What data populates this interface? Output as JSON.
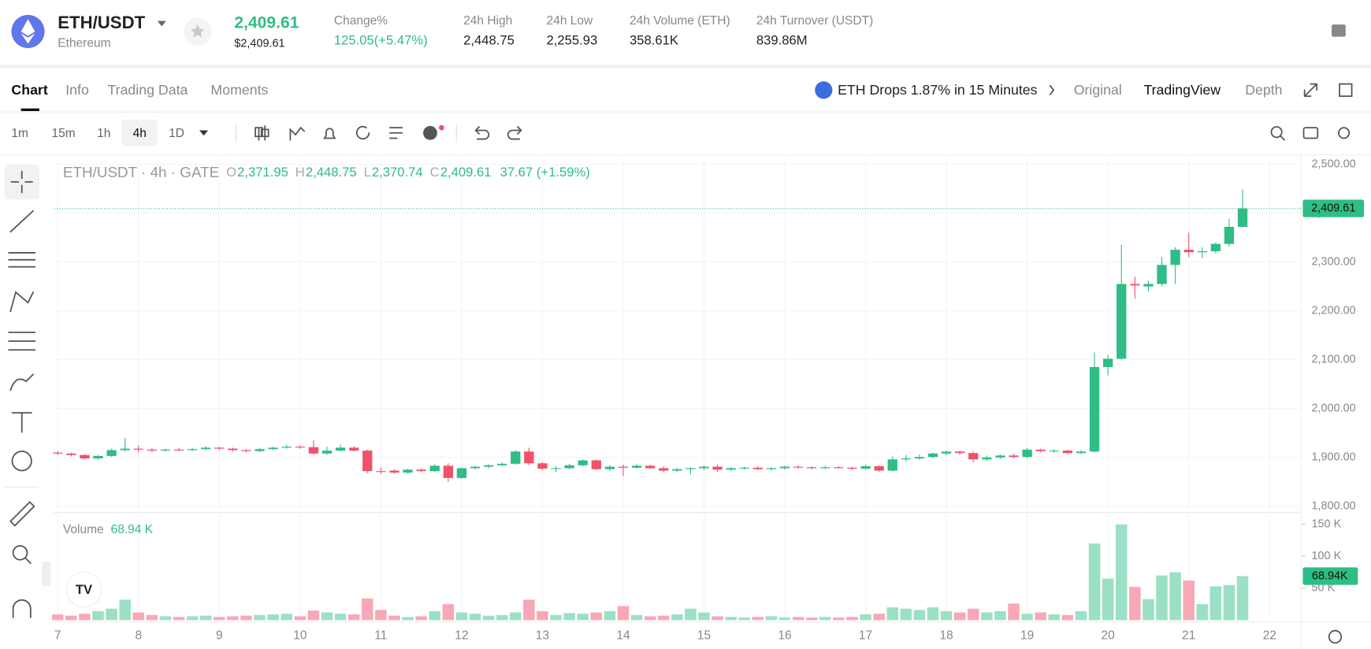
{
  "header": {
    "pair": "ETH/USDT",
    "name": "Ethereum",
    "price": "2,409.61",
    "price_usd": "$2,409.61",
    "stats": [
      {
        "label": "Change%",
        "value": "125.05(+5.47%)"
      },
      {
        "label": "24h High",
        "value": "2,448.75"
      },
      {
        "label": "24h Low",
        "value": "2,255.93"
      },
      {
        "label": "24h Volume (ETH)",
        "value": "358.61K"
      },
      {
        "label": "24h Turnover (USDT)",
        "value": "839.86M"
      }
    ]
  },
  "tabs": [
    {
      "label": "Chart",
      "active": true
    },
    {
      "label": "Info"
    },
    {
      "label": "Trading Data"
    },
    {
      "label": "Moments"
    }
  ],
  "news": "ETH Drops 1.87% in 15 Minutes",
  "views": [
    {
      "label": "Original"
    },
    {
      "label": "TradingView",
      "active": true
    },
    {
      "label": "Depth"
    }
  ],
  "intervals": [
    {
      "label": "1m"
    },
    {
      "label": "15m"
    },
    {
      "label": "1h"
    },
    {
      "label": "4h",
      "active": true
    },
    {
      "label": "1D"
    }
  ],
  "chart_data": {
    "type": "candlestick",
    "legend": {
      "title": "ETH/USDT · 4h · GATE",
      "fields": [
        {
          "label": "O",
          "value": "2,371.95"
        },
        {
          "label": "H",
          "value": "2,448.75"
        },
        {
          "label": "L",
          "value": "2,370.74"
        },
        {
          "label": "C",
          "value": "2,409.61"
        }
      ],
      "change": "37.67 (+1.59%)"
    },
    "up_color": "#2ebd85",
    "down_color": "#f0516b",
    "vol_up_color": "#9be0c4",
    "vol_down_color": "#f7a8b6",
    "grid": true,
    "candles": [
      [
        1910,
        1913,
        1905,
        1908
      ],
      [
        1908,
        1910,
        1902,
        1905
      ],
      [
        1905,
        1907,
        1896,
        1898
      ],
      [
        1898,
        1905,
        1895,
        1903
      ],
      [
        1903,
        1918,
        1901,
        1915
      ],
      [
        1915,
        1940,
        1912,
        1918
      ],
      [
        1918,
        1925,
        1910,
        1916
      ],
      [
        1916,
        1919,
        1911,
        1914
      ],
      [
        1914,
        1918,
        1912,
        1916
      ],
      [
        1916,
        1919,
        1913,
        1915
      ],
      [
        1915,
        1920,
        1913,
        1917
      ],
      [
        1917,
        1923,
        1915,
        1920
      ],
      [
        1920,
        1922,
        1915,
        1918
      ],
      [
        1918,
        1920,
        1912,
        1915
      ],
      [
        1915,
        1917,
        1910,
        1913
      ],
      [
        1913,
        1919,
        1911,
        1917
      ],
      [
        1917,
        1922,
        1915,
        1920
      ],
      [
        1920,
        1926,
        1918,
        1922
      ],
      [
        1922,
        1925,
        1918,
        1921
      ],
      [
        1921,
        1935,
        1906,
        1908
      ],
      [
        1908,
        1922,
        1905,
        1914
      ],
      [
        1914,
        1926,
        1912,
        1920
      ],
      [
        1920,
        1923,
        1912,
        1914
      ],
      [
        1914,
        1916,
        1868,
        1872
      ],
      [
        1872,
        1880,
        1866,
        1871
      ],
      [
        1873,
        1876,
        1867,
        1869
      ],
      [
        1869,
        1877,
        1867,
        1875
      ],
      [
        1875,
        1878,
        1870,
        1872
      ],
      [
        1872,
        1886,
        1870,
        1883
      ],
      [
        1883,
        1888,
        1850,
        1858
      ],
      [
        1858,
        1880,
        1856,
        1878
      ],
      [
        1878,
        1882,
        1875,
        1881
      ],
      [
        1881,
        1886,
        1878,
        1884
      ],
      [
        1884,
        1890,
        1882,
        1887
      ],
      [
        1887,
        1915,
        1885,
        1912
      ],
      [
        1912,
        1920,
        1884,
        1888
      ],
      [
        1888,
        1890,
        1874,
        1877
      ],
      [
        1877,
        1882,
        1870,
        1878
      ],
      [
        1878,
        1887,
        1876,
        1884
      ],
      [
        1884,
        1896,
        1882,
        1894
      ],
      [
        1894,
        1896,
        1874,
        1876
      ],
      [
        1876,
        1884,
        1872,
        1881
      ],
      [
        1881,
        1885,
        1862,
        1879
      ],
      [
        1879,
        1886,
        1877,
        1883
      ],
      [
        1883,
        1885,
        1876,
        1878
      ],
      [
        1878,
        1882,
        1870,
        1873
      ],
      [
        1873,
        1878,
        1870,
        1876
      ],
      [
        1876,
        1880,
        1865,
        1878
      ],
      [
        1878,
        1884,
        1874,
        1881
      ],
      [
        1881,
        1885,
        1870,
        1875
      ],
      [
        1875,
        1880,
        1872,
        1878
      ],
      [
        1878,
        1881,
        1875,
        1879
      ],
      [
        1879,
        1882,
        1874,
        1876
      ],
      [
        1876,
        1880,
        1873,
        1878
      ],
      [
        1878,
        1883,
        1875,
        1881
      ],
      [
        1881,
        1884,
        1877,
        1880
      ],
      [
        1880,
        1882,
        1876,
        1878
      ],
      [
        1878,
        1883,
        1876,
        1880
      ],
      [
        1880,
        1882,
        1877,
        1879
      ],
      [
        1879,
        1881,
        1874,
        1877
      ],
      [
        1877,
        1885,
        1875,
        1882
      ],
      [
        1882,
        1884,
        1870,
        1873
      ],
      [
        1873,
        1902,
        1871,
        1896
      ],
      [
        1896,
        1905,
        1892,
        1898
      ],
      [
        1898,
        1906,
        1895,
        1901
      ],
      [
        1901,
        1910,
        1898,
        1908
      ],
      [
        1908,
        1914,
        1904,
        1912
      ],
      [
        1912,
        1914,
        1905,
        1909
      ],
      [
        1909,
        1912,
        1890,
        1896
      ],
      [
        1896,
        1904,
        1893,
        1900
      ],
      [
        1900,
        1906,
        1897,
        1904
      ],
      [
        1904,
        1908,
        1898,
        1901
      ],
      [
        1901,
        1920,
        1898,
        1916
      ],
      [
        1916,
        1918,
        1910,
        1913
      ],
      [
        1913,
        1917,
        1910,
        1914
      ],
      [
        1914,
        1916,
        1906,
        1909
      ],
      [
        1909,
        1915,
        1907,
        1912
      ],
      [
        1912,
        2115,
        1910,
        2085
      ],
      [
        2085,
        2110,
        2068,
        2102
      ],
      [
        2102,
        2335,
        2100,
        2255
      ],
      [
        2255,
        2270,
        2225,
        2252
      ],
      [
        2250,
        2262,
        2240,
        2255
      ],
      [
        2255,
        2310,
        2250,
        2294
      ],
      [
        2294,
        2330,
        2255,
        2325
      ],
      [
        2325,
        2360,
        2310,
        2320
      ],
      [
        2320,
        2330,
        2308,
        2322
      ],
      [
        2322,
        2340,
        2318,
        2337
      ],
      [
        2337,
        2388,
        2332,
        2371.95
      ],
      [
        2371.95,
        2448.75,
        2370.74,
        2409.61
      ]
    ],
    "volumes": [
      9000,
      7000,
      10000,
      14000,
      18000,
      32000,
      12000,
      8000,
      6000,
      5000,
      6000,
      7000,
      5000,
      6000,
      7000,
      8000,
      9000,
      10000,
      6000,
      15000,
      12000,
      10000,
      9000,
      34000,
      16000,
      7000,
      5000,
      6000,
      14000,
      25000,
      12000,
      10000,
      7000,
      8000,
      12000,
      32000,
      14000,
      8000,
      11000,
      10000,
      12000,
      14000,
      22000,
      8000,
      6000,
      7000,
      9000,
      18000,
      12000,
      6000,
      5000,
      4000,
      5000,
      6000,
      4000,
      5000,
      4000,
      5000,
      4000,
      5000,
      9000,
      10000,
      20000,
      18000,
      16000,
      20000,
      14000,
      12000,
      18000,
      12000,
      14000,
      26000,
      10000,
      12000,
      9000,
      8000,
      14000,
      120000,
      65000,
      150000,
      52000,
      33000,
      70000,
      75000,
      62000,
      25000,
      53000,
      55000,
      68940
    ],
    "xlim": [
      -0.26,
      92.34
    ],
    "xticks": [
      {
        "value": 0,
        "label": "7"
      },
      {
        "value": 6,
        "label": "8"
      },
      {
        "value": 12,
        "label": "9"
      },
      {
        "value": 18,
        "label": "10"
      },
      {
        "value": 24,
        "label": "11"
      },
      {
        "value": 30,
        "label": "12"
      },
      {
        "value": 36,
        "label": "13"
      },
      {
        "value": 42,
        "label": "14"
      },
      {
        "value": 48,
        "label": "15"
      },
      {
        "value": 54,
        "label": "16"
      },
      {
        "value": 60,
        "label": "17"
      },
      {
        "value": 66,
        "label": "18"
      },
      {
        "value": 72,
        "label": "19"
      },
      {
        "value": 78,
        "label": "20"
      },
      {
        "value": 84,
        "label": "21"
      },
      {
        "value": 90,
        "label": "22"
      }
    ],
    "ylim": [
      1789,
      2514
    ],
    "yticks": [
      {
        "value": 1800,
        "label": "1,800.00"
      },
      {
        "value": 1900,
        "label": "1,900.00"
      },
      {
        "value": 2000,
        "label": "2,000.00"
      },
      {
        "value": 2100,
        "label": "2,100.00"
      },
      {
        "value": 2200,
        "label": "2,200.00"
      },
      {
        "value": 2300,
        "label": "2,300.00"
      },
      {
        "value": 2400,
        "label": "2,400.00"
      },
      {
        "value": 2500,
        "label": "2,500.00"
      }
    ],
    "price_label": "2,409.61",
    "volume_legend": {
      "label": "Volume",
      "value": "68.94 K"
    },
    "volume_ylim": [
      0,
      163000
    ],
    "volume_yticks": [
      {
        "value": 50000,
        "label": "50 K"
      },
      {
        "value": 100000,
        "label": "100 K"
      },
      {
        "value": 150000,
        "label": "150 K"
      }
    ],
    "volume_label": "68.94K"
  }
}
